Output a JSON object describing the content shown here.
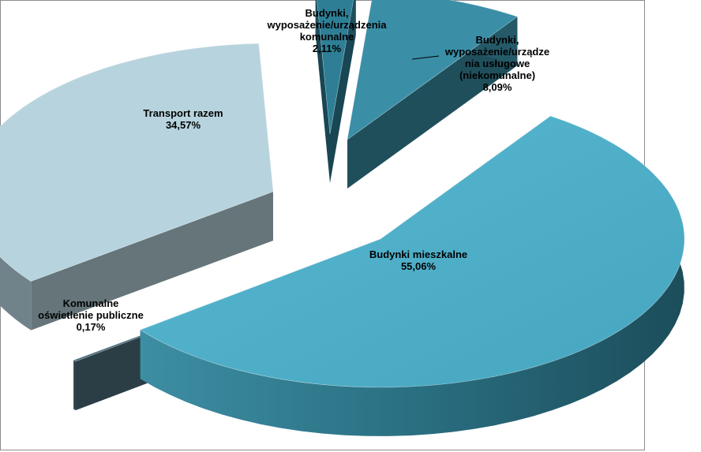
{
  "chart_data": {
    "type": "pie",
    "style": "3d-exploded",
    "title": "",
    "legend": "none",
    "slices": [
      {
        "label_lines": [
          "Budynki mieszkalne",
          "55,06%"
        ],
        "value": 55.06,
        "color": "#4bacc6"
      },
      {
        "label_lines": [
          "Komunalne",
          "oświetlenie publiczne",
          "0,17%"
        ],
        "value": 0.17,
        "color": "#4e6f7e"
      },
      {
        "label_lines": [
          "Transport razem",
          "34,57%"
        ],
        "value": 34.57,
        "color": "#b7d4de"
      },
      {
        "label_lines": [
          "Budynki,",
          "wyposażenie/urządzenia",
          "komunalne",
          "2,11%"
        ],
        "value": 2.11,
        "color": "#2e7f96"
      },
      {
        "label_lines": [
          "Budynki,",
          "wyposażenie/urządze",
          "nia usługowe",
          "(niekomunalne)",
          "8,09%"
        ],
        "value": 8.09,
        "color": "#3a8fa7"
      }
    ]
  }
}
